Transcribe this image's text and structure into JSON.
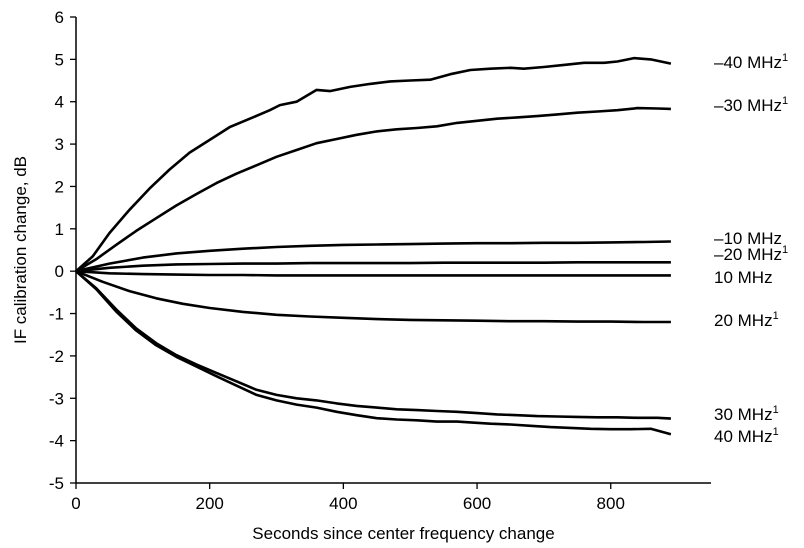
{
  "chart_data": {
    "type": "line",
    "title": "",
    "xlabel": "Seconds since center frequency change",
    "ylabel": "IF calibration change, dB",
    "xlim": [
      0,
      950
    ],
    "ylim": [
      -5,
      6
    ],
    "xticks": [
      "0",
      "200",
      "400",
      "600",
      "800"
    ],
    "yticks": [
      "6",
      "5",
      "4",
      "3",
      "2",
      "1",
      "0",
      "-1",
      "-2",
      "-3",
      "-4",
      "-5"
    ],
    "grid": false,
    "line_color": "#000000",
    "series": [
      {
        "name": "–40 MHz",
        "sup": "1",
        "x": [
          0,
          25,
          50,
          80,
          110,
          140,
          170,
          200,
          230,
          260,
          290,
          305,
          330,
          360,
          380,
          410,
          440,
          470,
          500,
          530,
          560,
          590,
          620,
          650,
          670,
          700,
          730,
          760,
          790,
          810,
          835,
          860,
          875,
          890
        ],
        "y": [
          0,
          0.35,
          0.9,
          1.45,
          1.95,
          2.4,
          2.8,
          3.1,
          3.4,
          3.6,
          3.8,
          3.92,
          4.0,
          4.28,
          4.25,
          4.35,
          4.42,
          4.48,
          4.5,
          4.52,
          4.65,
          4.75,
          4.78,
          4.8,
          4.78,
          4.82,
          4.87,
          4.92,
          4.92,
          4.95,
          5.03,
          5.0,
          4.95,
          4.9
        ]
      },
      {
        "name": "–30 MHz",
        "sup": "1",
        "x": [
          0,
          30,
          60,
          90,
          120,
          150,
          180,
          210,
          240,
          270,
          300,
          330,
          360,
          390,
          420,
          450,
          480,
          510,
          540,
          570,
          600,
          630,
          660,
          690,
          720,
          750,
          780,
          810,
          840,
          870,
          890
        ],
        "y": [
          0,
          0.28,
          0.62,
          0.95,
          1.25,
          1.55,
          1.82,
          2.08,
          2.3,
          2.5,
          2.7,
          2.86,
          3.02,
          3.12,
          3.22,
          3.3,
          3.35,
          3.38,
          3.42,
          3.5,
          3.55,
          3.6,
          3.63,
          3.66,
          3.7,
          3.74,
          3.77,
          3.8,
          3.85,
          3.84,
          3.83
        ]
      },
      {
        "name": "–10 MHz",
        "sup": "",
        "x": [
          0,
          50,
          100,
          150,
          200,
          250,
          300,
          350,
          400,
          450,
          500,
          550,
          600,
          650,
          700,
          750,
          800,
          850,
          890
        ],
        "y": [
          0,
          0.18,
          0.32,
          0.42,
          0.48,
          0.53,
          0.57,
          0.6,
          0.62,
          0.63,
          0.64,
          0.65,
          0.66,
          0.66,
          0.67,
          0.67,
          0.68,
          0.69,
          0.7
        ]
      },
      {
        "name": "–20 MHz",
        "sup": "1",
        "x": [
          0,
          50,
          100,
          150,
          200,
          250,
          300,
          350,
          400,
          450,
          500,
          550,
          600,
          650,
          700,
          750,
          800,
          850,
          890
        ],
        "y": [
          0,
          0.08,
          0.13,
          0.16,
          0.17,
          0.18,
          0.18,
          0.19,
          0.19,
          0.19,
          0.19,
          0.2,
          0.2,
          0.2,
          0.2,
          0.21,
          0.21,
          0.21,
          0.21
        ]
      },
      {
        "name": "10 MHz",
        "sup": "",
        "x": [
          0,
          50,
          100,
          150,
          200,
          250,
          300,
          350,
          400,
          450,
          500,
          550,
          600,
          650,
          700,
          750,
          800,
          850,
          890
        ],
        "y": [
          0,
          -0.05,
          -0.07,
          -0.08,
          -0.09,
          -0.09,
          -0.1,
          -0.1,
          -0.1,
          -0.1,
          -0.1,
          -0.1,
          -0.1,
          -0.1,
          -0.1,
          -0.1,
          -0.1,
          -0.1,
          -0.1
        ]
      },
      {
        "name": "20 MHz",
        "sup": "1",
        "x": [
          0,
          40,
          80,
          120,
          160,
          200,
          250,
          300,
          350,
          400,
          450,
          500,
          550,
          600,
          650,
          700,
          750,
          800,
          850,
          890
        ],
        "y": [
          0,
          -0.25,
          -0.47,
          -0.64,
          -0.77,
          -0.87,
          -0.96,
          -1.03,
          -1.07,
          -1.1,
          -1.13,
          -1.15,
          -1.16,
          -1.17,
          -1.18,
          -1.18,
          -1.19,
          -1.19,
          -1.2,
          -1.2
        ]
      },
      {
        "name": "30 MHz",
        "sup": "1",
        "x": [
          0,
          30,
          60,
          90,
          120,
          150,
          180,
          210,
          240,
          270,
          300,
          330,
          360,
          390,
          420,
          450,
          480,
          510,
          540,
          570,
          600,
          630,
          660,
          690,
          720,
          750,
          780,
          810,
          840,
          870,
          890
        ],
        "y": [
          0,
          -0.4,
          -0.9,
          -1.35,
          -1.7,
          -1.98,
          -2.2,
          -2.4,
          -2.6,
          -2.8,
          -2.92,
          -3.0,
          -3.05,
          -3.12,
          -3.18,
          -3.22,
          -3.26,
          -3.28,
          -3.3,
          -3.32,
          -3.35,
          -3.38,
          -3.4,
          -3.42,
          -3.43,
          -3.44,
          -3.45,
          -3.45,
          -3.46,
          -3.46,
          -3.48
        ]
      },
      {
        "name": "40 MHz",
        "sup": "1",
        "x": [
          0,
          30,
          60,
          90,
          120,
          150,
          180,
          210,
          240,
          270,
          300,
          330,
          360,
          390,
          420,
          450,
          480,
          510,
          540,
          570,
          590,
          620,
          650,
          680,
          710,
          740,
          770,
          800,
          830,
          860,
          890
        ],
        "y": [
          0,
          -0.42,
          -0.95,
          -1.4,
          -1.75,
          -2.02,
          -2.25,
          -2.48,
          -2.7,
          -2.92,
          -3.05,
          -3.15,
          -3.22,
          -3.32,
          -3.4,
          -3.47,
          -3.5,
          -3.52,
          -3.55,
          -3.55,
          -3.57,
          -3.6,
          -3.62,
          -3.65,
          -3.68,
          -3.7,
          -3.72,
          -3.73,
          -3.73,
          -3.72,
          -3.85
        ]
      }
    ]
  }
}
